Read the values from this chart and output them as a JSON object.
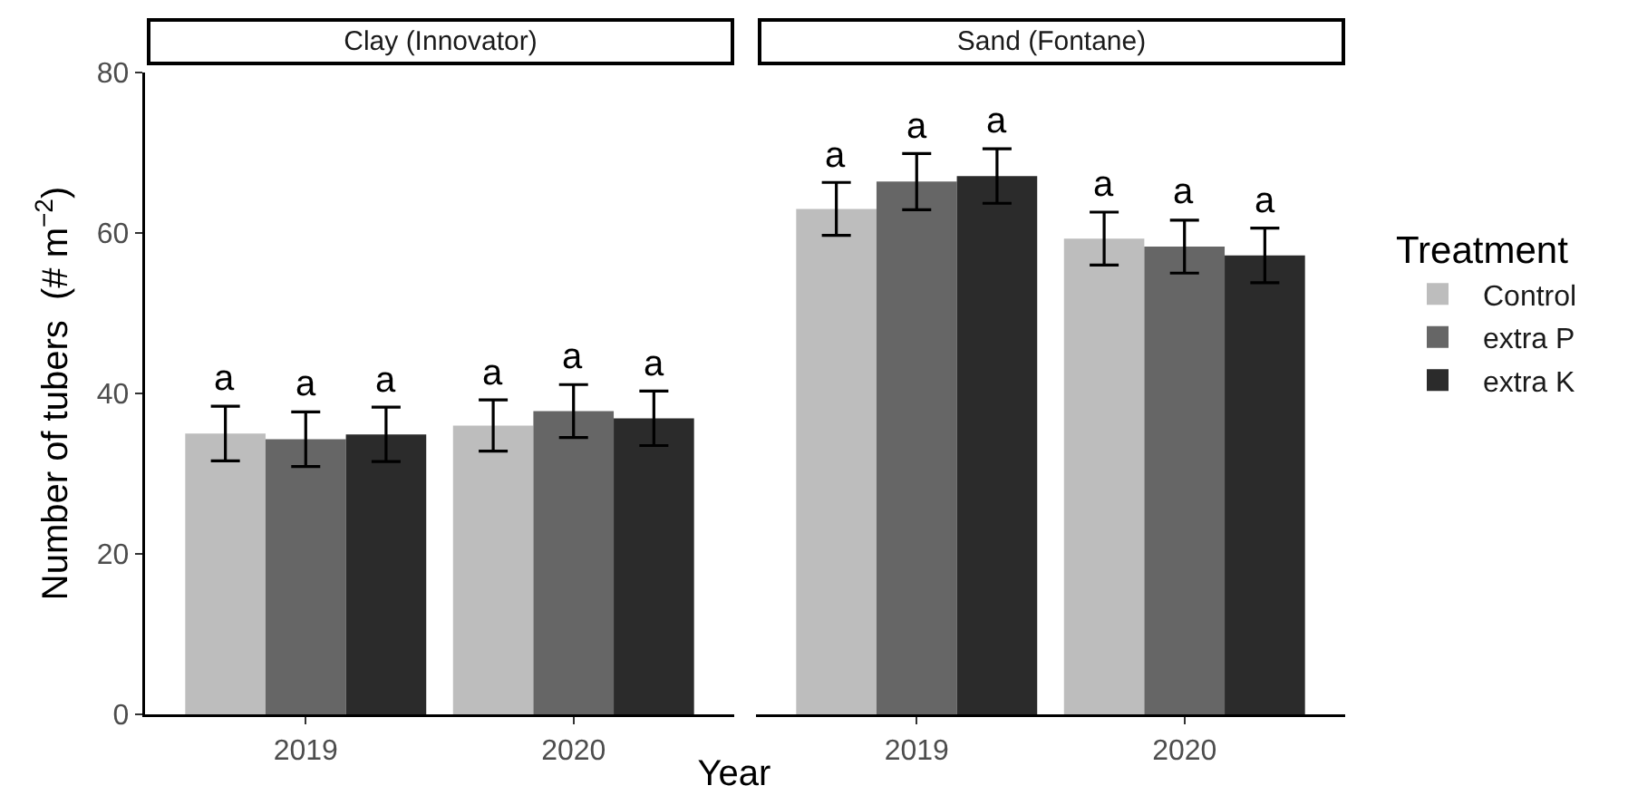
{
  "chart_data": [
    {
      "type": "bar",
      "title": "Clay (Innovator)",
      "xlabel": "Year",
      "ylabel": "Number of tubers  (# m$^{−2}$)",
      "categories": [
        "2019",
        "2020"
      ],
      "ylim": [
        0,
        80
      ],
      "yticks": [
        0,
        20,
        40,
        60,
        80
      ],
      "grid": false,
      "legend": false,
      "series": [
        {
          "color": "#bdbdbd",
          "values": [
            35.0,
            36.0
          ],
          "errors": [
            3.4,
            3.2
          ],
          "value_labels": [
            "a",
            "a"
          ]
        },
        {
          "color": "#666666",
          "values": [
            34.3,
            37.8
          ],
          "errors": [
            3.4,
            3.3
          ],
          "value_labels": [
            "a",
            "a"
          ]
        },
        {
          "color": "#2b2b2b",
          "values": [
            34.9,
            36.9
          ],
          "errors": [
            3.4,
            3.4
          ],
          "value_labels": [
            "a",
            "a"
          ]
        }
      ]
    },
    {
      "type": "bar",
      "title": "Sand (Fontane)",
      "legend_title": "Treatment",
      "categories": [
        "2019",
        "2020"
      ],
      "ylim": [
        0,
        80
      ],
      "yticks": [
        0,
        20,
        40,
        60,
        80
      ],
      "grid": false,
      "legend": "right",
      "tick_labels": "x",
      "series": [
        {
          "name": "Control",
          "color": "#bdbdbd",
          "values": [
            63.0,
            59.3
          ],
          "errors": [
            3.3,
            3.3
          ],
          "value_labels": [
            "a",
            "a"
          ]
        },
        {
          "name": "extra P",
          "color": "#666666",
          "values": [
            66.4,
            58.3
          ],
          "errors": [
            3.5,
            3.3
          ],
          "value_labels": [
            "a",
            "a"
          ]
        },
        {
          "name": "extra K",
          "color": "#2b2b2b",
          "values": [
            67.1,
            57.2
          ],
          "errors": [
            3.4,
            3.4
          ],
          "value_labels": [
            "a",
            "a"
          ]
        }
      ]
    }
  ]
}
